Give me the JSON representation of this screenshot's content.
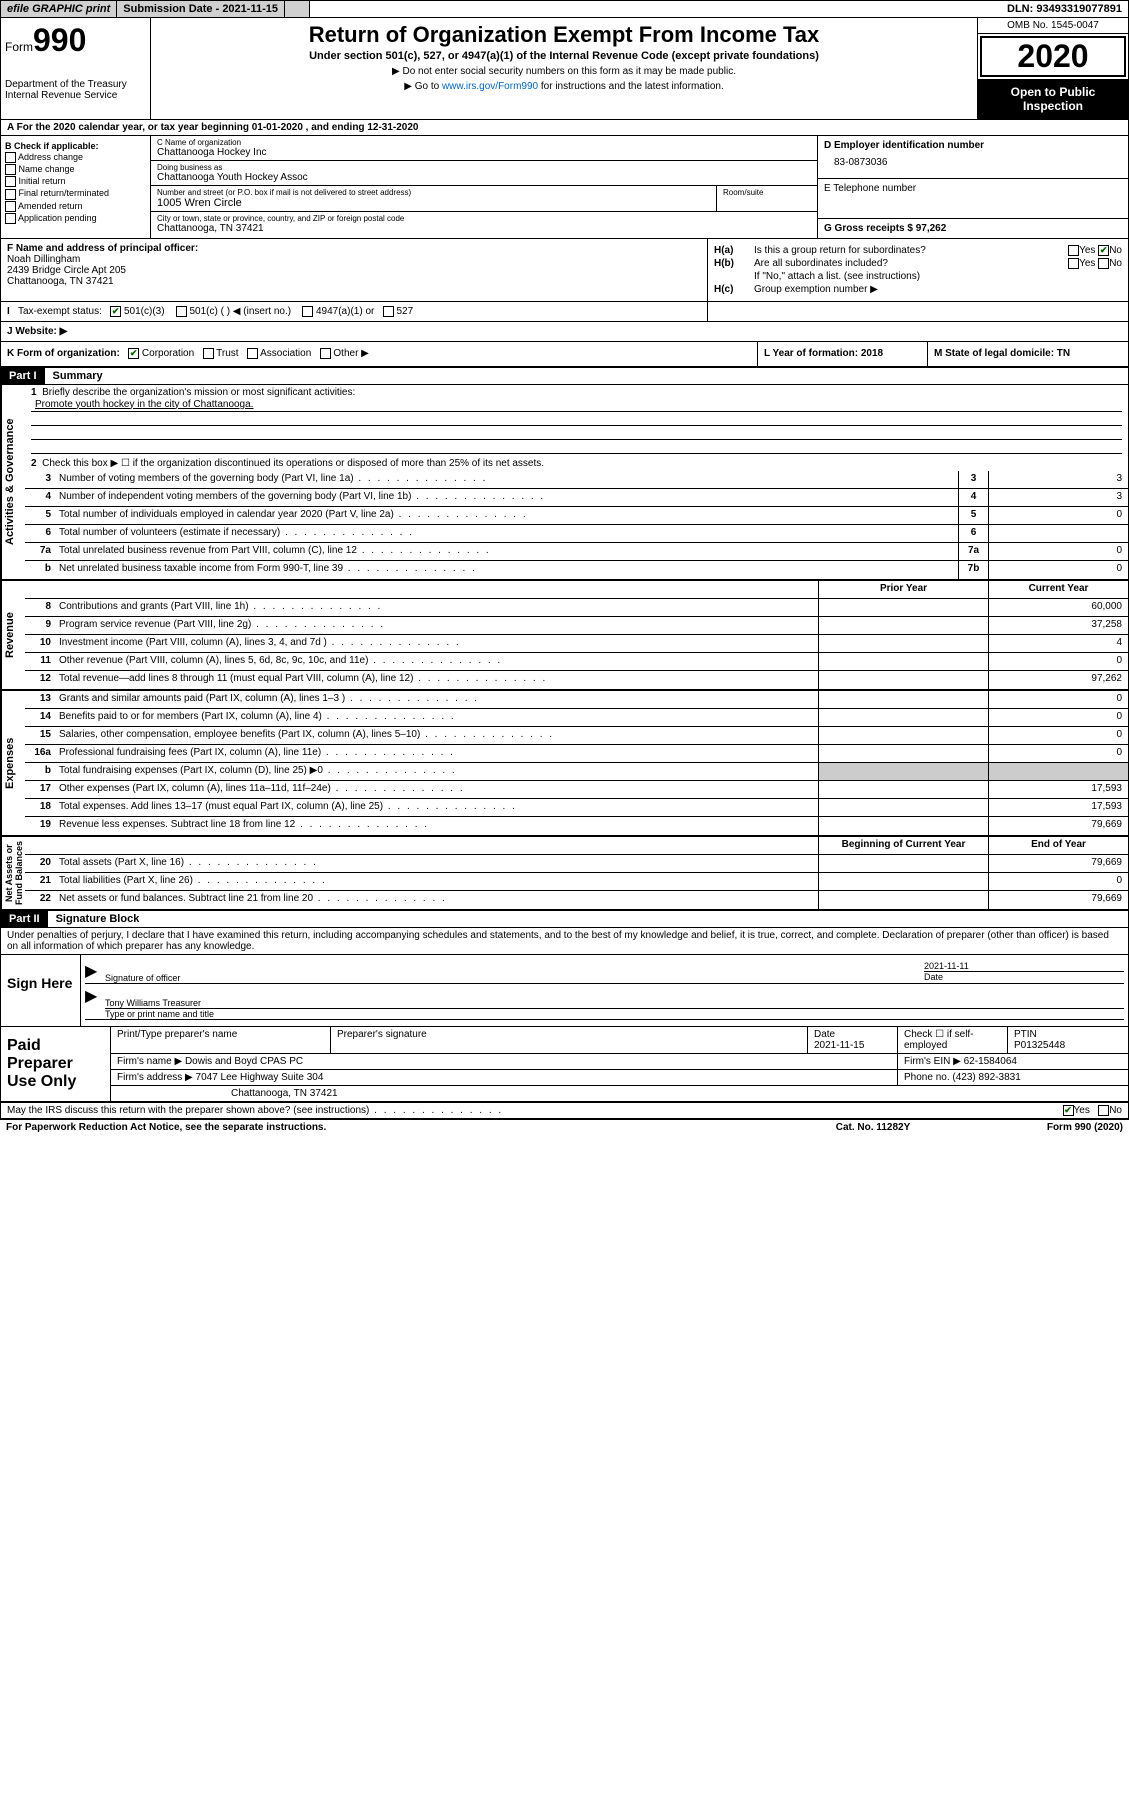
{
  "topbar": {
    "efile": "efile GRAPHIC print",
    "submission": "Submission Date - 2021-11-15",
    "dln": "DLN: 93493319077891"
  },
  "header": {
    "form_word": "Form",
    "form_number": "990",
    "dept": "Department of the Treasury\nInternal Revenue Service",
    "title": "Return of Organization Exempt From Income Tax",
    "subtitle": "Under section 501(c), 527, or 4947(a)(1) of the Internal Revenue Code (except private foundations)",
    "warn1": "▶ Do not enter social security numbers on this form as it may be made public.",
    "warn2_pre": "▶ Go to ",
    "warn2_link": "www.irs.gov/Form990",
    "warn2_post": " for instructions and the latest information.",
    "omb": "OMB No. 1545-0047",
    "year": "2020",
    "open": "Open to Public Inspection"
  },
  "rowA": "A For the 2020 calendar year, or tax year beginning 01-01-2020   , and ending 12-31-2020",
  "colB": {
    "title": "B Check if applicable:",
    "items": [
      "Address change",
      "Name change",
      "Initial return",
      "Final return/terminated",
      "Amended return",
      "Application pending"
    ]
  },
  "colC": {
    "name_label": "C Name of organization",
    "name": "Chattanooga Hockey Inc",
    "dba_label": "Doing business as",
    "dba": "Chattanooga Youth Hockey Assoc",
    "street_label": "Number and street (or P.O. box if mail is not delivered to street address)",
    "room_label": "Room/suite",
    "street": "1005 Wren Circle",
    "city_label": "City or town, state or province, country, and ZIP or foreign postal code",
    "city": "Chattanooga, TN  37421"
  },
  "colDE": {
    "d_label": "D Employer identification number",
    "ein": "83-0873036",
    "e_label": "E Telephone number",
    "g_label": "G Gross receipts $ 97,262"
  },
  "colF": {
    "label": "F  Name and address of principal officer:",
    "name": "Noah Dillingham",
    "addr1": "2439 Bridge Circle Apt 205",
    "addr2": "Chattanooga, TN  37421"
  },
  "colH": {
    "ha": "Is this a group return for subordinates?",
    "hb": "Are all subordinates included?",
    "hb_note": "If \"No,\" attach a list. (see instructions)",
    "hc": "Group exemption number ▶"
  },
  "rowI": {
    "label": "Tax-exempt status:",
    "opts": [
      "501(c)(3)",
      "501(c) (  ) ◀ (insert no.)",
      "4947(a)(1) or",
      "527"
    ]
  },
  "rowJ": "J   Website: ▶",
  "rowK": "K Form of organization:",
  "rowK_opts": [
    "Corporation",
    "Trust",
    "Association",
    "Other ▶"
  ],
  "rowL": "L Year of formation: 2018",
  "rowM": "M State of legal domicile: TN",
  "part1": {
    "header": "Part I",
    "title": "Summary",
    "q1": "Briefly describe the organization's mission or most significant activities:",
    "mission": "Promote youth hockey in the city of Chattanooga.",
    "q2": "Check this box ▶ ☐  if the organization discontinued its operations or disposed of more than 25% of its net assets.",
    "rows_gov": [
      {
        "n": "3",
        "t": "Number of voting members of the governing body (Part VI, line 1a)",
        "box": "3",
        "v": "3"
      },
      {
        "n": "4",
        "t": "Number of independent voting members of the governing body (Part VI, line 1b)",
        "box": "4",
        "v": "3"
      },
      {
        "n": "5",
        "t": "Total number of individuals employed in calendar year 2020 (Part V, line 2a)",
        "box": "5",
        "v": "0"
      },
      {
        "n": "6",
        "t": "Total number of volunteers (estimate if necessary)",
        "box": "6",
        "v": ""
      },
      {
        "n": "7a",
        "t": "Total unrelated business revenue from Part VIII, column (C), line 12",
        "box": "7a",
        "v": "0"
      },
      {
        "n": "b",
        "t": "Net unrelated business taxable income from Form 990-T, line 39",
        "box": "7b",
        "v": "0"
      }
    ],
    "hdr_prior": "Prior Year",
    "hdr_current": "Current Year",
    "rows_rev": [
      {
        "n": "8",
        "t": "Contributions and grants (Part VIII, line 1h)",
        "p": "",
        "c": "60,000"
      },
      {
        "n": "9",
        "t": "Program service revenue (Part VIII, line 2g)",
        "p": "",
        "c": "37,258"
      },
      {
        "n": "10",
        "t": "Investment income (Part VIII, column (A), lines 3, 4, and 7d )",
        "p": "",
        "c": "4"
      },
      {
        "n": "11",
        "t": "Other revenue (Part VIII, column (A), lines 5, 6d, 8c, 9c, 10c, and 11e)",
        "p": "",
        "c": "0"
      },
      {
        "n": "12",
        "t": "Total revenue—add lines 8 through 11 (must equal Part VIII, column (A), line 12)",
        "p": "",
        "c": "97,262"
      }
    ],
    "rows_exp": [
      {
        "n": "13",
        "t": "Grants and similar amounts paid (Part IX, column (A), lines 1–3 )",
        "p": "",
        "c": "0"
      },
      {
        "n": "14",
        "t": "Benefits paid to or for members (Part IX, column (A), line 4)",
        "p": "",
        "c": "0"
      },
      {
        "n": "15",
        "t": "Salaries, other compensation, employee benefits (Part IX, column (A), lines 5–10)",
        "p": "",
        "c": "0"
      },
      {
        "n": "16a",
        "t": "Professional fundraising fees (Part IX, column (A), line 11e)",
        "p": "",
        "c": "0"
      },
      {
        "n": "b",
        "t": "Total fundraising expenses (Part IX, column (D), line 25) ▶0",
        "p": "shaded",
        "c": "shaded"
      },
      {
        "n": "17",
        "t": "Other expenses (Part IX, column (A), lines 11a–11d, 11f–24e)",
        "p": "",
        "c": "17,593"
      },
      {
        "n": "18",
        "t": "Total expenses. Add lines 13–17 (must equal Part IX, column (A), line 25)",
        "p": "",
        "c": "17,593"
      },
      {
        "n": "19",
        "t": "Revenue less expenses. Subtract line 18 from line 12",
        "p": "",
        "c": "79,669"
      }
    ],
    "hdr_begin": "Beginning of Current Year",
    "hdr_end": "End of Year",
    "rows_net": [
      {
        "n": "20",
        "t": "Total assets (Part X, line 16)",
        "p": "",
        "c": "79,669"
      },
      {
        "n": "21",
        "t": "Total liabilities (Part X, line 26)",
        "p": "",
        "c": "0"
      },
      {
        "n": "22",
        "t": "Net assets or fund balances. Subtract line 21 from line 20",
        "p": "",
        "c": "79,669"
      }
    ]
  },
  "part2": {
    "header": "Part II",
    "title": "Signature Block",
    "perjury": "Under penalties of perjury, I declare that I have examined this return, including accompanying schedules and statements, and to the best of my knowledge and belief, it is true, correct, and complete. Declaration of preparer (other than officer) is based on all information of which preparer has any knowledge."
  },
  "sign": {
    "label": "Sign Here",
    "sig_label": "Signature of officer",
    "date": "2021-11-11",
    "date_label": "Date",
    "name": "Tony Williams  Treasurer",
    "name_label": "Type or print name and title"
  },
  "prep": {
    "label": "Paid Preparer Use Only",
    "h1": "Print/Type preparer's name",
    "h2": "Preparer's signature",
    "h3": "Date",
    "date": "2021-11-15",
    "h4": "Check ☐ if self-employed",
    "h5": "PTIN",
    "ptin": "P01325448",
    "firm_label": "Firm's name    ▶",
    "firm": "Dowis and Boyd CPAS PC",
    "ein_label": "Firm's EIN ▶",
    "ein": "62-1584064",
    "addr_label": "Firm's address ▶",
    "addr1": "7047 Lee Highway Suite 304",
    "addr2": "Chattanooga, TN  37421",
    "phone_label": "Phone no.",
    "phone": "(423) 892-3831"
  },
  "footer": {
    "discuss": "May the IRS discuss this return with the preparer shown above? (see instructions)",
    "paperwork": "For Paperwork Reduction Act Notice, see the separate instructions.",
    "cat": "Cat. No. 11282Y",
    "form": "Form 990 (2020)"
  }
}
